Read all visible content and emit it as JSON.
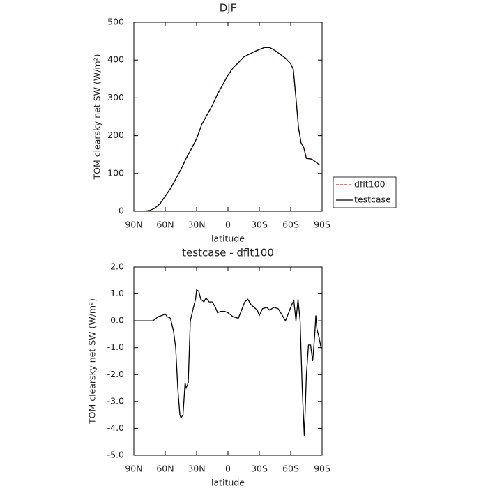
{
  "chart_data": [
    {
      "type": "line",
      "title": "DJF",
      "xlabel": "latitude",
      "ylabel": "TOM clearsky net SW (W/m²)",
      "xlim": [
        90,
        -90
      ],
      "xticks": [
        {
          "value": 90,
          "label": "90N"
        },
        {
          "value": 60,
          "label": "60N"
        },
        {
          "value": 30,
          "label": "30N"
        },
        0,
        {
          "value": -30,
          "label": "30S"
        },
        {
          "value": -60,
          "label": "60S"
        },
        {
          "value": -90,
          "label": "90S"
        }
      ],
      "ylim": [
        0,
        500
      ],
      "yticks": [
        0,
        100,
        200,
        300,
        400,
        500
      ],
      "legend": "outside-right",
      "x": [
        80,
        75,
        70,
        65,
        60,
        55,
        50,
        45,
        40,
        35,
        30,
        25,
        20,
        15,
        10,
        5,
        0,
        -5,
        -10,
        -15,
        -20,
        -25,
        -30,
        -35,
        -40,
        -45,
        -50,
        -55,
        -60,
        -62.5,
        -65,
        -67.5,
        -70,
        -72.5,
        -75,
        -80,
        -85,
        -88
      ],
      "series": [
        {
          "name": "dflt100",
          "color": "#e0201b",
          "style": "dashed",
          "values": [
            0,
            2,
            8,
            20,
            40,
            60,
            85,
            110,
            140,
            165,
            192,
            230,
            255,
            280,
            310,
            335,
            360,
            380,
            393,
            408,
            415,
            422,
            428,
            433,
            433,
            425,
            415,
            405,
            390,
            375,
            300,
            220,
            180,
            168,
            140,
            138,
            128,
            122
          ]
        },
        {
          "name": "testcase",
          "color": "#000000",
          "style": "solid",
          "values": [
            0,
            2,
            8,
            20,
            40,
            60,
            85,
            110,
            140,
            165,
            192,
            230,
            255,
            280,
            310,
            335,
            360,
            380,
            393,
            408,
            415,
            422,
            428,
            433,
            433,
            425,
            415,
            405,
            390,
            375,
            300,
            220,
            180,
            168,
            140,
            138,
            128,
            122
          ]
        }
      ]
    },
    {
      "type": "line",
      "title": "testcase - dflt100",
      "xlabel": "latitude",
      "ylabel": "TOM clearsky net SW (W/m²)",
      "xlim": [
        90,
        -90
      ],
      "xticks": [
        {
          "value": 90,
          "label": "90N"
        },
        {
          "value": 60,
          "label": "60N"
        },
        {
          "value": 30,
          "label": "30N"
        },
        0,
        {
          "value": -30,
          "label": "30S"
        },
        {
          "value": -60,
          "label": "60S"
        },
        {
          "value": -90,
          "label": "90S"
        }
      ],
      "ylim": [
        -5,
        2
      ],
      "yticks": [
        {
          "value": -5,
          "label": "-5.0"
        },
        {
          "value": -4,
          "label": "-4.0"
        },
        {
          "value": -3,
          "label": "-3.0"
        },
        {
          "value": -2,
          "label": "-2.0"
        },
        {
          "value": -1,
          "label": "-1.0"
        },
        {
          "value": 0,
          "label": "0.0"
        },
        {
          "value": 1,
          "label": "1.0"
        },
        {
          "value": 2,
          "label": "2.0"
        }
      ],
      "x": [
        90,
        80,
        72,
        70,
        67,
        63,
        60,
        58,
        55,
        52,
        50,
        48,
        46,
        45,
        43,
        41,
        40,
        38,
        36,
        33,
        31,
        30,
        28,
        26,
        23,
        21,
        18,
        15,
        12,
        10,
        7,
        3,
        0,
        -5,
        -10,
        -13,
        -16,
        -19,
        -22,
        -25,
        -28,
        -30,
        -33,
        -37,
        -40,
        -44,
        -48,
        -52,
        -55,
        -58,
        -61,
        -63,
        -65,
        -67,
        -69,
        -71,
        -73,
        -75,
        -77,
        -79,
        -81,
        -83,
        -84,
        -85,
        -87,
        -89,
        -90
      ],
      "series": [
        {
          "name": "testcase",
          "color": "#000000",
          "style": "solid",
          "values": [
            0,
            0,
            0,
            0.05,
            0.15,
            0.2,
            0.25,
            0.15,
            0.1,
            -0.4,
            -1.0,
            -2.5,
            -3.5,
            -3.6,
            -3.5,
            -2.3,
            -2.5,
            -2.3,
            0.0,
            0.5,
            0.8,
            1.15,
            1.1,
            0.8,
            0.7,
            0.85,
            0.7,
            0.7,
            0.5,
            0.3,
            0.35,
            0.35,
            0.3,
            0.15,
            0.1,
            0.4,
            0.7,
            0.8,
            0.6,
            0.5,
            0.4,
            0.2,
            0.45,
            0.5,
            0.4,
            0.5,
            0.45,
            0.2,
            0.0,
            0.3,
            0.6,
            0.75,
            0.0,
            0.8,
            0.0,
            -2.5,
            -4.3,
            -2.0,
            -0.9,
            -0.9,
            -1.5,
            -0.5,
            0.2,
            -0.3,
            -0.6,
            -1.0,
            -1.0
          ]
        }
      ]
    }
  ]
}
